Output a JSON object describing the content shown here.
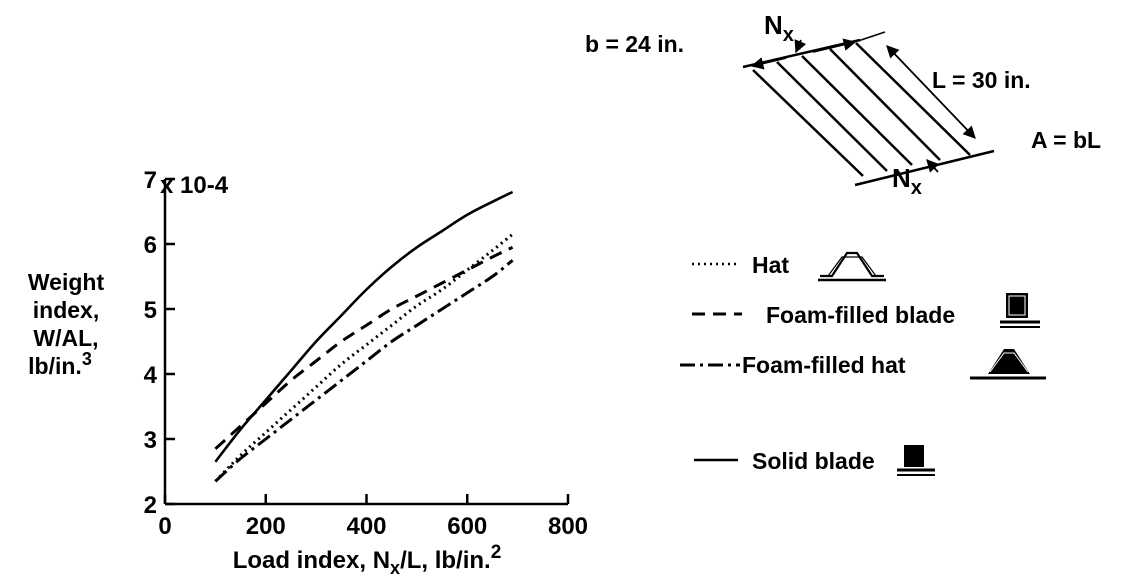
{
  "chart_data": {
    "type": "line",
    "xlabel": "Load index, N",
    "xlabel_sub": "x",
    "xlabel_tail": "/L, lb/in.",
    "xlabel_sup": "2",
    "ylabel_lines": [
      "Weight",
      "index,",
      "W/AL,",
      "lb/in."
    ],
    "ylabel_sup": "3",
    "y_multiplier": "x 10-4",
    "xlim": [
      0,
      800
    ],
    "ylim": [
      2,
      7
    ],
    "x_ticks": [
      "0",
      "200",
      "400",
      "600",
      "800"
    ],
    "y_ticks": [
      "2",
      "3",
      "4",
      "5",
      "6",
      "7"
    ],
    "series": [
      {
        "name": "Hat",
        "style": "dotted",
        "x": [
          100,
          150,
          200,
          250,
          300,
          350,
          400,
          450,
          500,
          550,
          600,
          650,
          690
        ],
        "y": [
          2.35,
          2.75,
          3.1,
          3.45,
          3.8,
          4.15,
          4.45,
          4.75,
          5.05,
          5.3,
          5.6,
          5.9,
          6.15
        ]
      },
      {
        "name": "Foam-filled blade",
        "style": "dashed",
        "x": [
          100,
          150,
          200,
          250,
          300,
          350,
          400,
          450,
          500,
          550,
          600,
          650,
          690
        ],
        "y": [
          2.85,
          3.2,
          3.55,
          3.9,
          4.2,
          4.5,
          4.75,
          5.0,
          5.2,
          5.4,
          5.6,
          5.8,
          5.95
        ]
      },
      {
        "name": "Foam-filled hat",
        "style": "dash-dot",
        "x": [
          100,
          150,
          200,
          250,
          300,
          350,
          400,
          450,
          500,
          550,
          600,
          650,
          690
        ],
        "y": [
          2.35,
          2.7,
          3.0,
          3.3,
          3.6,
          3.9,
          4.2,
          4.5,
          4.75,
          5.0,
          5.25,
          5.5,
          5.75
        ]
      },
      {
        "name": "Solid blade",
        "style": "solid",
        "x": [
          100,
          150,
          200,
          250,
          300,
          350,
          400,
          450,
          500,
          550,
          600,
          650,
          690
        ],
        "y": [
          2.65,
          3.15,
          3.6,
          4.05,
          4.5,
          4.9,
          5.3,
          5.65,
          5.95,
          6.2,
          6.45,
          6.65,
          6.8
        ]
      }
    ]
  },
  "diagram": {
    "b_label": "b = 24 in.",
    "L_label": "L = 30 in.",
    "A_label": "A = bL",
    "nx_main": "N",
    "nx_sub": "x"
  }
}
